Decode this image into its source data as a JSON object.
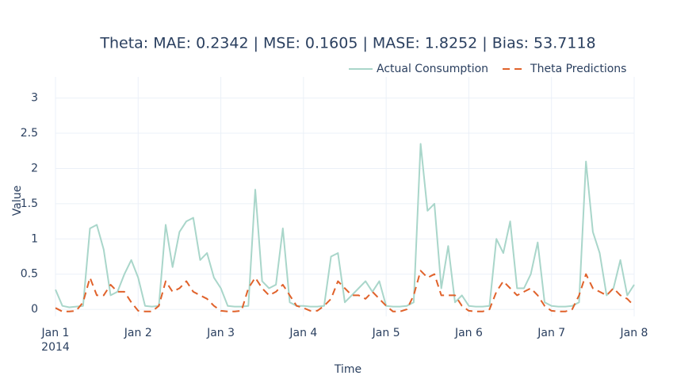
{
  "chart_data": {
    "type": "line",
    "title": "Theta: MAE: 0.2342 | MSE: 0.1605 | MASE: 1.8252 | Bias: 53.7118",
    "x_label": "Time",
    "y_label": "Value",
    "x": [
      "2014-01-01 00:00",
      "2014-01-01 02:00",
      "2014-01-01 04:00",
      "2014-01-01 06:00",
      "2014-01-01 08:00",
      "2014-01-01 10:00",
      "2014-01-01 12:00",
      "2014-01-01 14:00",
      "2014-01-01 16:00",
      "2014-01-01 18:00",
      "2014-01-01 20:00",
      "2014-01-01 22:00",
      "2014-01-02 00:00",
      "2014-01-02 02:00",
      "2014-01-02 04:00",
      "2014-01-02 06:00",
      "2014-01-02 08:00",
      "2014-01-02 10:00",
      "2014-01-02 12:00",
      "2014-01-02 14:00",
      "2014-01-02 16:00",
      "2014-01-02 18:00",
      "2014-01-02 20:00",
      "2014-01-02 22:00",
      "2014-01-03 00:00",
      "2014-01-03 02:00",
      "2014-01-03 04:00",
      "2014-01-03 06:00",
      "2014-01-03 08:00",
      "2014-01-03 10:00",
      "2014-01-03 12:00",
      "2014-01-03 14:00",
      "2014-01-03 16:00",
      "2014-01-03 18:00",
      "2014-01-03 20:00",
      "2014-01-03 22:00",
      "2014-01-04 00:00",
      "2014-01-04 02:00",
      "2014-01-04 04:00",
      "2014-01-04 06:00",
      "2014-01-04 08:00",
      "2014-01-04 10:00",
      "2014-01-04 12:00",
      "2014-01-04 14:00",
      "2014-01-04 16:00",
      "2014-01-04 18:00",
      "2014-01-04 20:00",
      "2014-01-04 22:00",
      "2014-01-05 00:00",
      "2014-01-05 02:00",
      "2014-01-05 04:00",
      "2014-01-05 06:00",
      "2014-01-05 08:00",
      "2014-01-05 10:00",
      "2014-01-05 12:00",
      "2014-01-05 14:00",
      "2014-01-05 16:00",
      "2014-01-05 18:00",
      "2014-01-05 20:00",
      "2014-01-05 22:00",
      "2014-01-06 00:00",
      "2014-01-06 02:00",
      "2014-01-06 04:00",
      "2014-01-06 06:00",
      "2014-01-06 08:00",
      "2014-01-06 10:00",
      "2014-01-06 12:00",
      "2014-01-06 14:00",
      "2014-01-06 16:00",
      "2014-01-06 18:00",
      "2014-01-06 20:00",
      "2014-01-06 22:00",
      "2014-01-07 00:00",
      "2014-01-07 02:00",
      "2014-01-07 04:00",
      "2014-01-07 06:00",
      "2014-01-07 08:00",
      "2014-01-07 10:00",
      "2014-01-07 12:00",
      "2014-01-07 14:00",
      "2014-01-07 16:00",
      "2014-01-07 18:00",
      "2014-01-07 20:00",
      "2014-01-07 22:00",
      "2014-01-08 00:00"
    ],
    "series": [
      {
        "name": "Actual Consumption",
        "color": "#a9d6ca",
        "dash": "solid",
        "values": [
          0.28,
          0.05,
          0.03,
          0.04,
          0.05,
          1.15,
          1.2,
          0.85,
          0.2,
          0.25,
          0.5,
          0.7,
          0.45,
          0.05,
          0.04,
          0.05,
          1.2,
          0.6,
          1.1,
          1.25,
          1.3,
          0.7,
          0.8,
          0.45,
          0.3,
          0.05,
          0.04,
          0.04,
          0.05,
          1.7,
          0.4,
          0.3,
          0.35,
          1.15,
          0.1,
          0.05,
          0.05,
          0.04,
          0.04,
          0.05,
          0.75,
          0.8,
          0.1,
          0.2,
          0.3,
          0.4,
          0.25,
          0.4,
          0.05,
          0.04,
          0.04,
          0.05,
          0.1,
          2.35,
          1.4,
          1.5,
          0.3,
          0.9,
          0.1,
          0.2,
          0.05,
          0.04,
          0.04,
          0.05,
          1.0,
          0.8,
          1.25,
          0.3,
          0.3,
          0.5,
          0.95,
          0.1,
          0.05,
          0.04,
          0.04,
          0.05,
          0.1,
          2.1,
          1.1,
          0.8,
          0.2,
          0.3,
          0.7,
          0.2,
          0.35
        ]
      },
      {
        "name": "Theta Predictions",
        "color": "#e0622b",
        "dash": "dash",
        "values": [
          0.02,
          -0.03,
          -0.03,
          -0.02,
          0.1,
          0.45,
          0.2,
          0.2,
          0.35,
          0.25,
          0.25,
          0.1,
          -0.02,
          -0.03,
          -0.03,
          0.05,
          0.4,
          0.25,
          0.3,
          0.4,
          0.25,
          0.2,
          0.15,
          0.05,
          -0.02,
          -0.03,
          -0.03,
          -0.02,
          0.3,
          0.45,
          0.3,
          0.2,
          0.25,
          0.35,
          0.2,
          0.05,
          0.02,
          -0.02,
          -0.02,
          0.05,
          0.15,
          0.4,
          0.3,
          0.2,
          0.2,
          0.15,
          0.25,
          0.15,
          0.05,
          -0.03,
          -0.03,
          0.0,
          0.2,
          0.55,
          0.45,
          0.5,
          0.2,
          0.2,
          0.2,
          0.05,
          -0.02,
          -0.03,
          -0.03,
          0.0,
          0.25,
          0.4,
          0.3,
          0.2,
          0.25,
          0.3,
          0.2,
          0.05,
          -0.02,
          -0.03,
          -0.03,
          0.0,
          0.2,
          0.5,
          0.3,
          0.25,
          0.2,
          0.3,
          0.2,
          0.15,
          0.05
        ]
      }
    ],
    "xlim": [
      "2014-01-01 00:00",
      "2014-01-08 00:00"
    ],
    "xticks": [
      {
        "value": "2014-01-01 00:00",
        "label": "Jan 1"
      },
      {
        "value": "2014-01-02 00:00",
        "label": "Jan 2"
      },
      {
        "value": "2014-01-03 00:00",
        "label": "Jan 3"
      },
      {
        "value": "2014-01-04 00:00",
        "label": "Jan 4"
      },
      {
        "value": "2014-01-05 00:00",
        "label": "Jan 5"
      },
      {
        "value": "2014-01-06 00:00",
        "label": "Jan 6"
      },
      {
        "value": "2014-01-07 00:00",
        "label": "Jan 7"
      },
      {
        "value": "2014-01-08 00:00",
        "label": "Jan 8"
      }
    ],
    "xtick_year_label": "2014",
    "ylim": [
      -0.1,
      3.3
    ],
    "yticks": [
      0,
      0.5,
      1,
      1.5,
      2,
      2.5,
      3
    ],
    "grid": true,
    "legend": "top-right"
  }
}
